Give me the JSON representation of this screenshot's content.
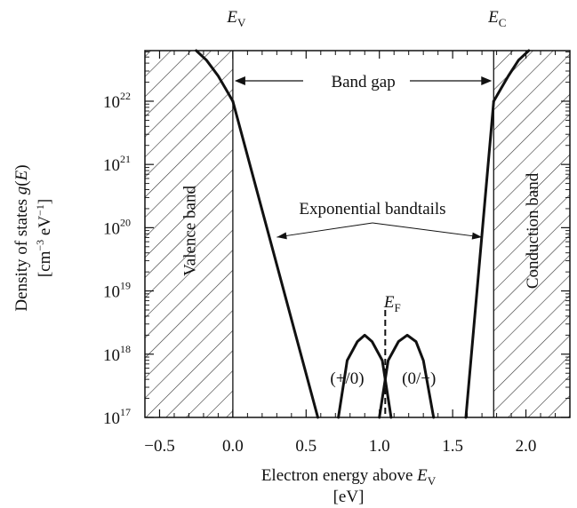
{
  "chart_data": {
    "type": "line",
    "xlabel": "Electron energy above",
    "xlabel_sym": "E",
    "xlabel_sub": "V",
    "xunit": "[eV]",
    "ylabel": "Density of states g(E)",
    "yunit_parts": [
      "[cm",
      "−3",
      " eV",
      "−1",
      "]"
    ],
    "xlim": [
      -0.6,
      2.3
    ],
    "ylim_log10": [
      17,
      22.8
    ],
    "yscale": "log",
    "x_ticks": [
      {
        "value": -0.5,
        "label": "−0.5"
      },
      {
        "value": 0.0,
        "label": "0.0"
      },
      {
        "value": 0.5,
        "label": "0.5"
      },
      {
        "value": 1.0,
        "label": "1.0"
      },
      {
        "value": 1.5,
        "label": "1.5"
      },
      {
        "value": 2.0,
        "label": "2.0"
      }
    ],
    "y_ticks": [
      {
        "exp": 17,
        "base": "10",
        "power": "17"
      },
      {
        "exp": 18,
        "base": "10",
        "power": "18"
      },
      {
        "exp": 19,
        "base": "10",
        "power": "19"
      },
      {
        "exp": 20,
        "base": "10",
        "power": "20"
      },
      {
        "exp": 21,
        "base": "10",
        "power": "21"
      },
      {
        "exp": 22,
        "base": "10",
        "power": "22"
      }
    ],
    "markers": {
      "EV": {
        "x": 0.0,
        "sym": "E",
        "sub": "V"
      },
      "EC": {
        "x": 1.78,
        "sym": "E",
        "sub": "C"
      },
      "EF": {
        "x": 1.04,
        "sym": "E",
        "sub": "F"
      }
    },
    "annotations": {
      "band_gap": "Band gap",
      "bandtails": "Exponential bandtails",
      "valence": "Valence band",
      "conduction": "Conduction band",
      "donor": "(+/0)",
      "acceptor": "(0/−)"
    },
    "series": [
      {
        "x": [
          -0.25,
          -0.18,
          -0.1,
          -0.05,
          0.0
        ],
        "log10_y": [
          22.8,
          22.65,
          22.4,
          22.2,
          22.0
        ]
      },
      {
        "x": [
          0.0,
          0.58
        ],
        "log10_y": [
          22.0,
          17.0
        ]
      },
      {
        "x": [
          0.72,
          0.78,
          0.85,
          0.9,
          0.95,
          1.02,
          1.08
        ],
        "log10_y": [
          17.0,
          17.9,
          18.2,
          18.3,
          18.2,
          17.9,
          17.0
        ]
      },
      {
        "x": [
          1.0,
          1.06,
          1.13,
          1.19,
          1.25,
          1.3,
          1.37
        ],
        "log10_y": [
          17.0,
          17.9,
          18.2,
          18.3,
          18.2,
          17.9,
          17.0
        ]
      },
      {
        "x": [
          1.59,
          1.78
        ],
        "log10_y": [
          17.0,
          22.0
        ]
      },
      {
        "x": [
          1.78,
          1.83,
          1.88,
          1.95,
          2.02
        ],
        "log10_y": [
          22.0,
          22.2,
          22.4,
          22.65,
          22.8
        ]
      }
    ]
  }
}
